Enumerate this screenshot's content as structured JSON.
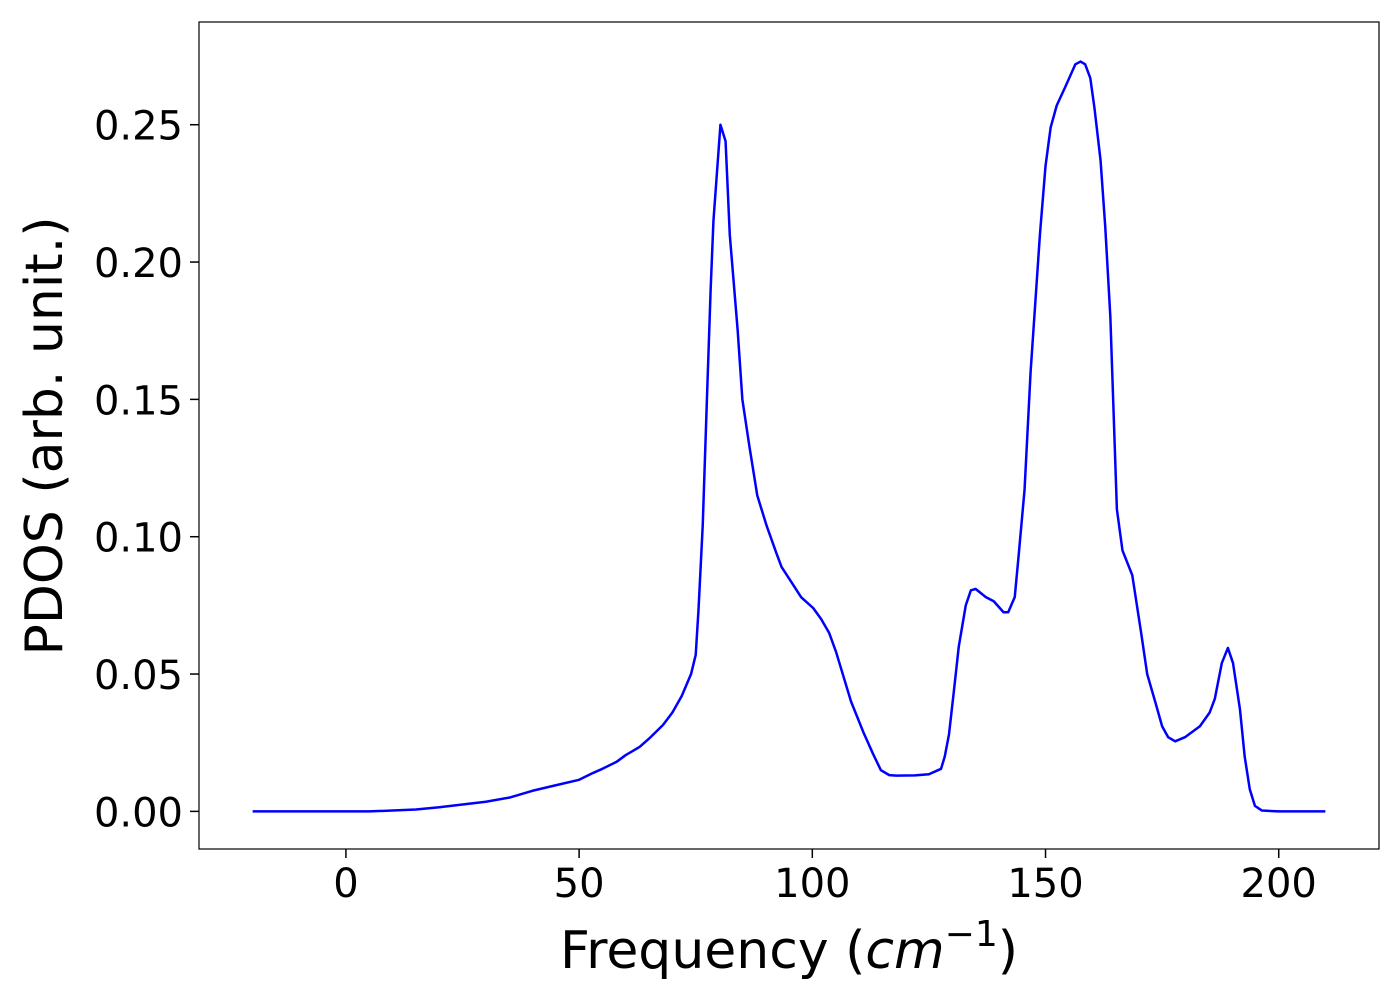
{
  "chart_data": {
    "type": "line",
    "xlabel": [
      "Frequency (",
      "cm",
      "−1",
      ")"
    ],
    "ylabel": "PDOS (arb. unit.)",
    "xlim": [
      -31.5,
      221.5
    ],
    "ylim": [
      -0.0137,
      0.2874
    ],
    "xticks": [
      0,
      50,
      100,
      150,
      200
    ],
    "yticks": [
      {
        "value": 0,
        "label": "0.00"
      },
      {
        "value": 0.05,
        "label": "0.05"
      },
      {
        "value": 0.1,
        "label": "0.10"
      },
      {
        "value": 0.15,
        "label": "0.15"
      },
      {
        "value": 0.2,
        "label": "0.20"
      },
      {
        "value": 0.25,
        "label": "0.25"
      }
    ],
    "grid": false,
    "series": [
      {
        "color": "#0000ff",
        "x": [
          -20,
          -10,
          0,
          5,
          10,
          15,
          20,
          25,
          30,
          35,
          40,
          45,
          50,
          53,
          55,
          58,
          60,
          63,
          65,
          68,
          70,
          72,
          74,
          75,
          75.6,
          76.5,
          77.4,
          78.2,
          78.8,
          80.3,
          81.4,
          82.3,
          84,
          85,
          86.5,
          88.2,
          90.2,
          92.3,
          93.4,
          95.7,
          97.6,
          100.2,
          101.9,
          103.6,
          105.1,
          108.3,
          110.9,
          113,
          114.7,
          116.5,
          118,
          122,
          125,
          127.6,
          128.4,
          129.3,
          130.3,
          131.4,
          132.9,
          134,
          135,
          137.2,
          138.9,
          141,
          142,
          143.4,
          144.2,
          145.5,
          146.8,
          148,
          148.8,
          150,
          151.1,
          152.4,
          154.3,
          156.4,
          157.5,
          158.5,
          159.6,
          160.5,
          161.8,
          162.8,
          163.9,
          164.5,
          165.3,
          166.5,
          168.6,
          170.5,
          171.8,
          173.5,
          175,
          176.3,
          177.8,
          179.9,
          183.1,
          185.2,
          186.3,
          187.8,
          189.1,
          190.2,
          191.7,
          192.7,
          193.8,
          194.9,
          196.4,
          200,
          210
        ],
        "values": [
          0,
          0,
          0,
          0,
          0.0003,
          0.0007,
          0.0015,
          0.0025,
          0.0035,
          0.005,
          0.0075,
          0.0095,
          0.0115,
          0.014,
          0.0155,
          0.018,
          0.0205,
          0.0235,
          0.0265,
          0.0315,
          0.036,
          0.042,
          0.05,
          0.057,
          0.0735,
          0.104,
          0.15,
          0.19,
          0.215,
          0.25,
          0.244,
          0.21,
          0.175,
          0.15,
          0.133,
          0.115,
          0.104,
          0.094,
          0.089,
          0.083,
          0.078,
          0.074,
          0.07,
          0.065,
          0.058,
          0.04,
          0.029,
          0.021,
          0.015,
          0.0132,
          0.013,
          0.0131,
          0.0135,
          0.0155,
          0.02,
          0.028,
          0.043,
          0.06,
          0.075,
          0.0805,
          0.081,
          0.078,
          0.0765,
          0.0725,
          0.0725,
          0.078,
          0.0925,
          0.117,
          0.16,
          0.19,
          0.21,
          0.235,
          0.249,
          0.257,
          0.264,
          0.272,
          0.273,
          0.272,
          0.267,
          0.256,
          0.237,
          0.213,
          0.18,
          0.15,
          0.11,
          0.095,
          0.086,
          0.065,
          0.05,
          0.04,
          0.031,
          0.027,
          0.0255,
          0.027,
          0.031,
          0.036,
          0.041,
          0.054,
          0.0595,
          0.054,
          0.037,
          0.02,
          0.008,
          0.002,
          0.0003,
          0,
          0
        ]
      }
    ]
  }
}
